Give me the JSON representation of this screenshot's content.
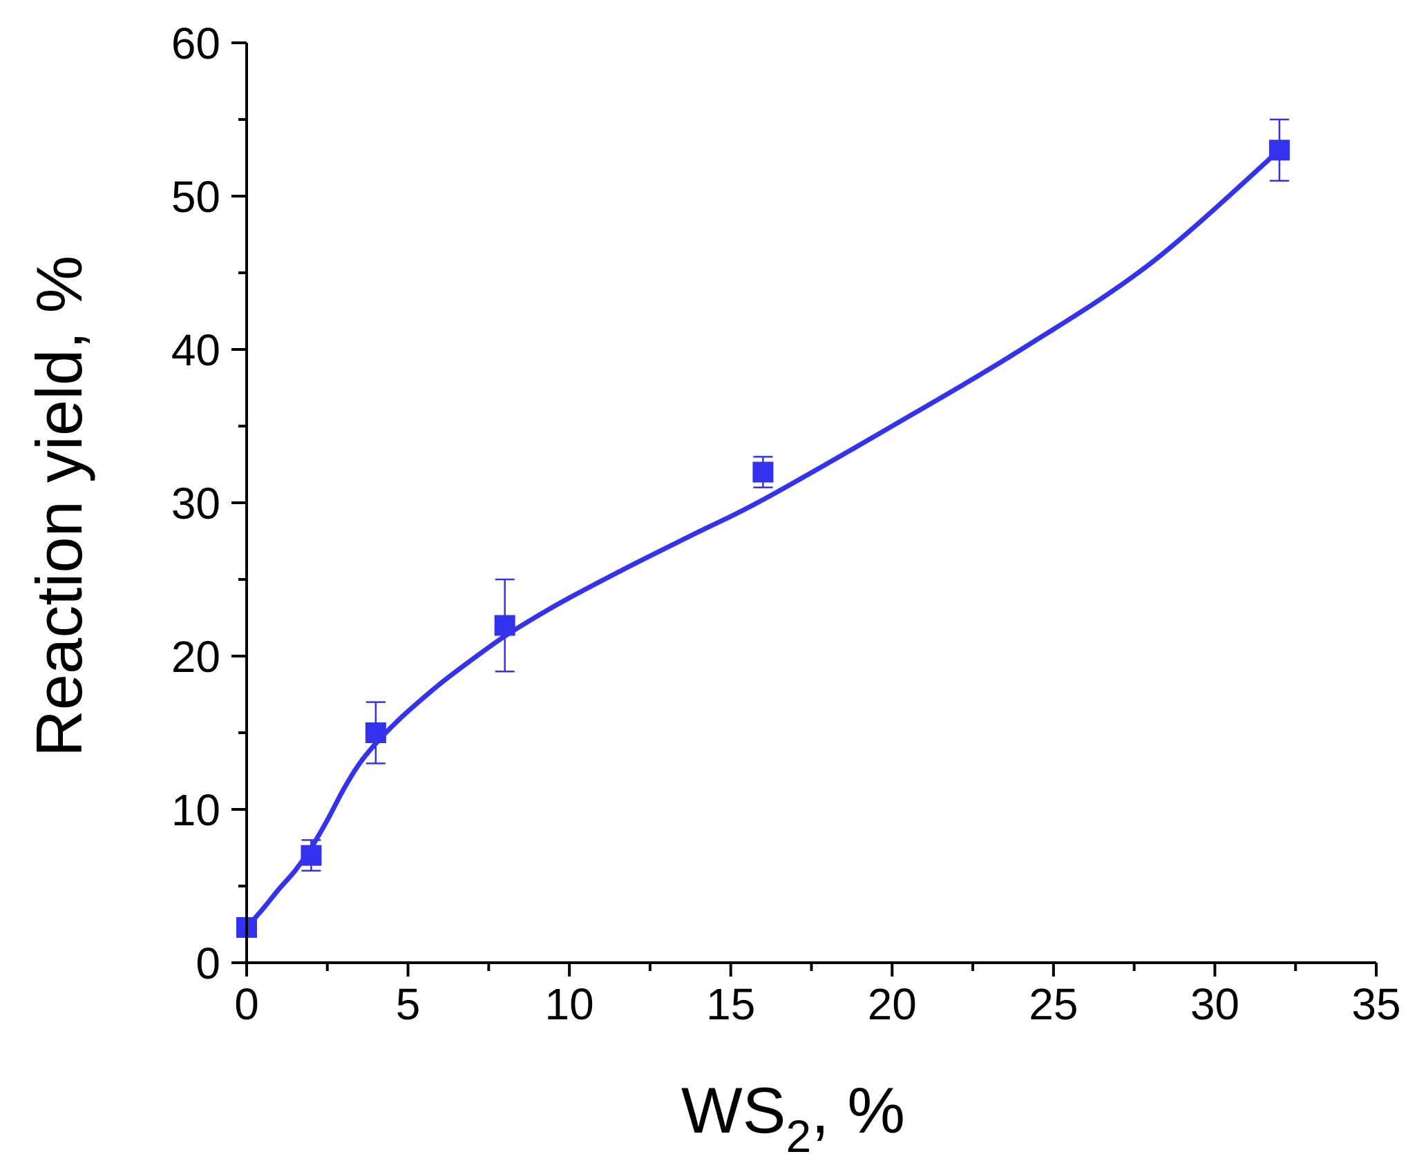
{
  "chart_data": {
    "type": "line",
    "title": "",
    "xlabel_main": "WS",
    "xlabel_sub": "2",
    "xlabel_suffix": ", %",
    "ylabel": "Reaction yield, %",
    "xlim": [
      0,
      35
    ],
    "ylim": [
      0,
      60
    ],
    "xticks": [
      0,
      5,
      10,
      15,
      20,
      25,
      30,
      35
    ],
    "yticks": [
      0,
      10,
      20,
      30,
      40,
      50,
      60
    ],
    "grid": false,
    "legend": "none",
    "series": [
      {
        "color": "#3333ee",
        "x": [
          0,
          2,
          4,
          8,
          16,
          32
        ],
        "y": [
          2.3,
          7,
          15,
          22,
          32,
          53
        ],
        "error": [
          0,
          1,
          2,
          3,
          1,
          2
        ]
      }
    ],
    "fit_curve": {
      "color": "#3333ee",
      "x": [
        0,
        0.5,
        1,
        1.5,
        2,
        2.5,
        3,
        3.5,
        4,
        4.5,
        5,
        6,
        7,
        8,
        9,
        10,
        12,
        14,
        16,
        20,
        24,
        28,
        32
      ],
      "y": [
        2.3,
        3.5,
        4.8,
        6.0,
        7.5,
        9.3,
        11.3,
        13.0,
        14.3,
        15.4,
        16.4,
        18.2,
        19.8,
        21.3,
        22.6,
        23.8,
        26.0,
        28.1,
        30.2,
        35.0,
        40.0,
        45.6,
        53.0
      ]
    }
  }
}
